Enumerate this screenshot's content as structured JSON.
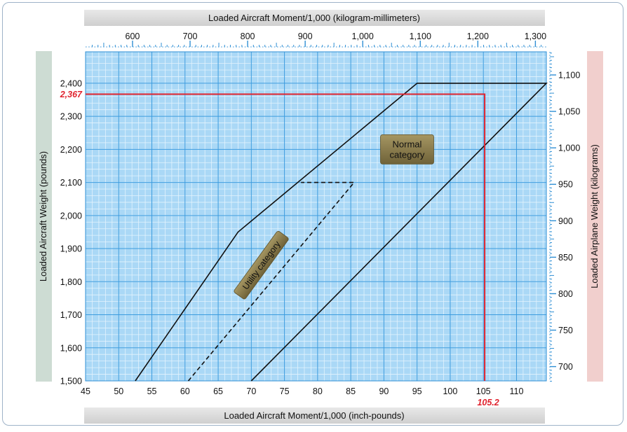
{
  "chart_data": {
    "type": "line",
    "title_top": "Loaded Aircraft Moment/1,000 (kilogram-millimeters)",
    "title_bottom": "Loaded Aircraft Moment/1,000 (inch-pounds)",
    "ylabel_left": "Loaded  Aircraft Weight (pounds)",
    "ylabel_right": "Loaded Airplane Weight (kilograms)",
    "x_axis": {
      "min": 45,
      "max": 114.5,
      "ticks": [
        45,
        50,
        55,
        60,
        65,
        70,
        75,
        80,
        85,
        90,
        95,
        100,
        105,
        110
      ]
    },
    "x_axis_top": {
      "ticks": [
        600,
        700,
        800,
        900,
        1000,
        1100,
        1200,
        1300
      ],
      "tick_labels": [
        "600",
        "700",
        "800",
        "900",
        "1,000",
        "1,100",
        "1,200",
        "1,300"
      ],
      "factor_per_inch_pound_unit": 11.52
    },
    "y_axis": {
      "min": 1500,
      "max": 2495,
      "ticks": [
        1500,
        1600,
        1700,
        1800,
        1900,
        2000,
        2100,
        2200,
        2300,
        2400
      ],
      "tick_labels": [
        "1,500",
        "1,600",
        "1,700",
        "1,800",
        "1,900",
        "2,000",
        "2,100",
        "2,200",
        "2,300",
        "2,400"
      ]
    },
    "y_axis_right": {
      "ticks": [
        700,
        750,
        800,
        850,
        900,
        950,
        1000,
        1050,
        1100
      ],
      "tick_labels": [
        "700",
        "750",
        "800",
        "850",
        "900",
        "950",
        "1,000",
        "1,050",
        "1,100"
      ],
      "lb_per_kg": 2.2046
    },
    "grid": true,
    "series": [
      {
        "style": "solid",
        "points": [
          [
            52.5,
            1500
          ],
          [
            68,
            1950
          ],
          [
            95,
            2400
          ],
          [
            114.5,
            2400
          ],
          [
            70,
            1500
          ]
        ]
      },
      {
        "style": "dashed",
        "points": [
          [
            60.5,
            1500
          ],
          [
            85.5,
            2100
          ],
          [
            77.5,
            2100
          ]
        ]
      }
    ],
    "example": {
      "x": 105.2,
      "y": 2367,
      "x_label": "105.2",
      "y_label": "2,367"
    },
    "annotations": [
      {
        "text_lines": [
          "Normal",
          "category"
        ],
        "x": 93.5,
        "y": 2200
      },
      {
        "text_lines": [
          "Utility category"
        ],
        "x": 71.5,
        "y": 1850
      }
    ]
  }
}
